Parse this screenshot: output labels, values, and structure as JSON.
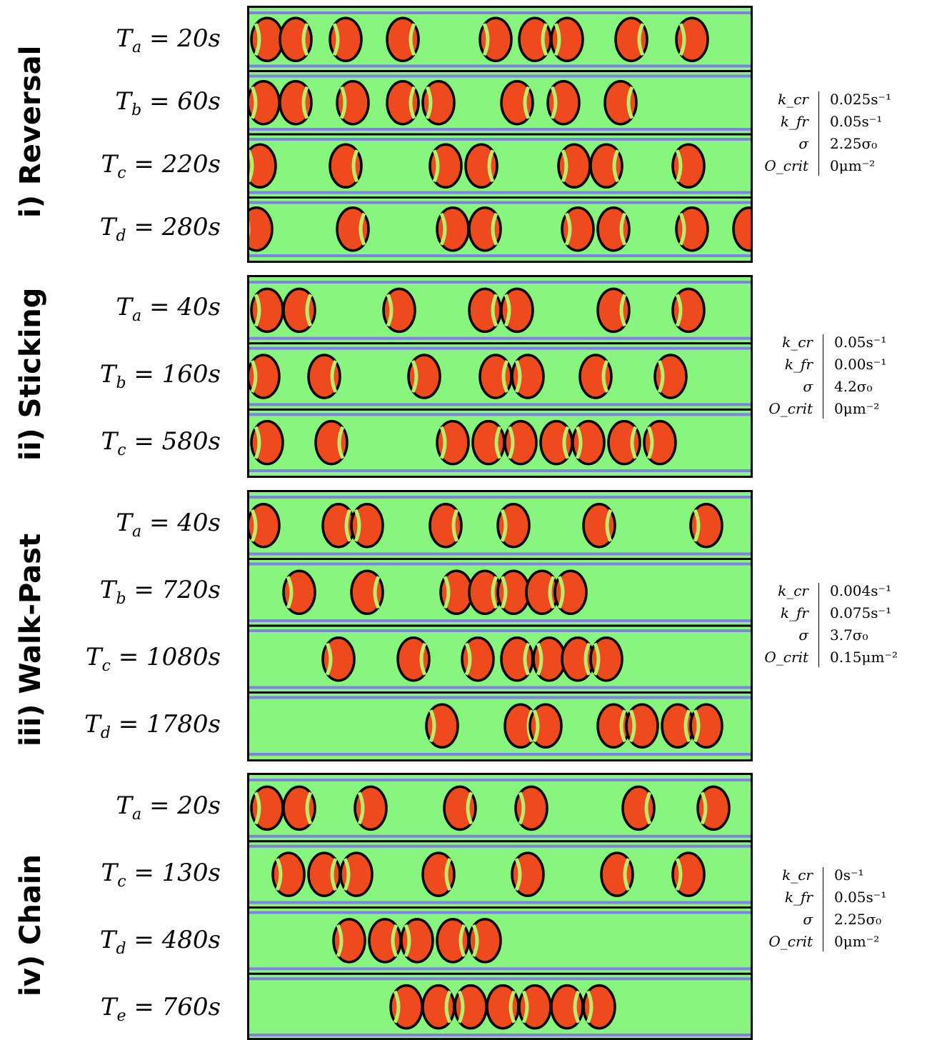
{
  "sections": [
    {
      "title": "i) Reversal",
      "rows": [
        {
          "label": "T_a = 20s"
        },
        {
          "label": "T_b = 60s"
        },
        {
          "label": "T_c = 220s"
        },
        {
          "label": "T_d = 280s"
        }
      ],
      "params": {
        "keys": [
          "k_cr",
          "k_fr",
          "σ",
          "O_crit"
        ],
        "values": [
          "0.025s⁻¹",
          "0.05s⁻¹",
          "2.25σ₀",
          "0μm⁻²"
        ]
      }
    },
    {
      "title": "ii) Sticking",
      "rows": [
        {
          "label": "T_a = 40s"
        },
        {
          "label": "T_b = 160s"
        },
        {
          "label": "T_c = 580s"
        }
      ],
      "params": {
        "keys": [
          "k_cr",
          "k_fr",
          "σ",
          "O_crit"
        ],
        "values": [
          "0.05s⁻¹",
          "0.00s⁻¹",
          "4.2σ₀",
          "0μm⁻²"
        ]
      }
    },
    {
      "title": "iii) Walk-Past",
      "rows": [
        {
          "label": "T_a = 40s"
        },
        {
          "label": "T_b = 720s"
        },
        {
          "label": "T_c = 1080s"
        },
        {
          "label": "T_d = 1780s"
        }
      ],
      "params": {
        "keys": [
          "k_cr",
          "k_fr",
          "σ",
          "O_crit"
        ],
        "values": [
          "0.004s⁻¹",
          "0.075s⁻¹",
          "3.7σ₀",
          "0.15μm⁻²"
        ]
      }
    },
    {
      "title": "iv) Chain",
      "rows": [
        {
          "label": "T_a = 20s"
        },
        {
          "label": "T_c = 130s"
        },
        {
          "label": "T_d = 480s"
        },
        {
          "label": "T_e = 760s"
        }
      ],
      "params": {
        "keys": [
          "k_cr",
          "k_fr",
          "σ",
          "O_crit"
        ],
        "values": [
          "0s⁻¹",
          "0.05s⁻¹",
          "2.25σ₀",
          "0μm⁻²"
        ]
      }
    }
  ],
  "colors": {
    "channel": "#86f67f",
    "wall": "#8080e6",
    "cell": "#ee4a1e",
    "cell_edge": "#000000",
    "front": "#b8ef6a"
  }
}
